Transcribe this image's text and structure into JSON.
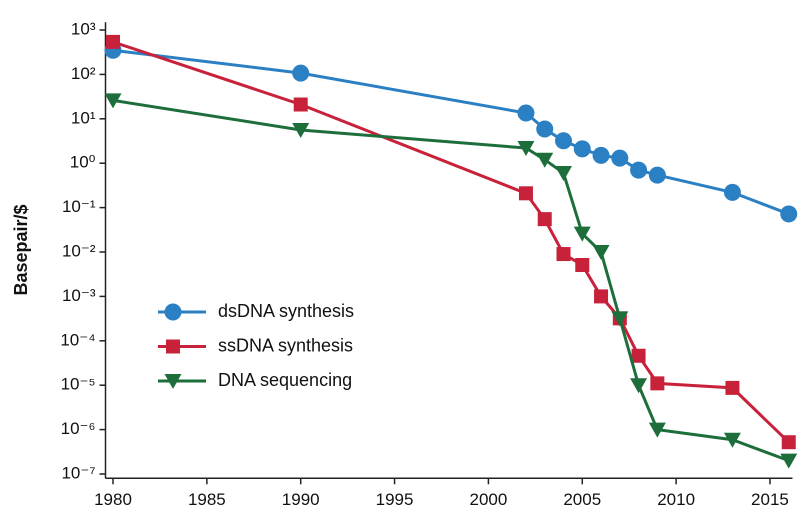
{
  "chart_data": {
    "type": "line",
    "y_label": "Basepair/$",
    "log_y": true,
    "xlim": [
      1979.6,
      2016.2
    ],
    "ylim": [
      8e-08,
      1500
    ],
    "xticks": [
      1980,
      1985,
      1990,
      1995,
      2000,
      2005,
      2010,
      2015
    ],
    "yticks": [
      {
        "value": 1e-07,
        "label": "10⁻⁷"
      },
      {
        "value": 1e-06,
        "label": "10⁻⁶"
      },
      {
        "value": 1e-05,
        "label": "10⁻⁵"
      },
      {
        "value": 0.0001,
        "label": "10⁻⁴"
      },
      {
        "value": 0.001,
        "label": "10⁻³"
      },
      {
        "value": 0.01,
        "label": "10⁻²"
      },
      {
        "value": 0.1,
        "label": "10⁻¹"
      },
      {
        "value": 1,
        "label": "10⁰"
      },
      {
        "value": 10,
        "label": "10¹"
      },
      {
        "value": 100,
        "label": "10²"
      },
      {
        "value": 1000,
        "label": "10³"
      }
    ],
    "series": [
      {
        "name": "dsDNA synthesis",
        "color": "#2b7fc3",
        "marker": "circle",
        "x": [
          1980,
          1990,
          2002,
          2003,
          2004,
          2005,
          2006,
          2007,
          2008,
          2009,
          2013,
          2016
        ],
        "values": [
          350,
          107,
          13.5,
          5.9,
          3.2,
          2.1,
          1.5,
          1.3,
          0.7,
          0.54,
          0.22,
          0.072
        ]
      },
      {
        "name": "ssDNA synthesis",
        "color": "#c8213a",
        "marker": "square",
        "x": [
          1980,
          1990,
          2002,
          2003,
          2004,
          2005,
          2006,
          2007,
          2008,
          2009,
          2013,
          2016
        ],
        "values": [
          540,
          21,
          0.21,
          0.055,
          0.009,
          0.0051,
          0.001,
          0.00032,
          4.6e-05,
          1.1e-05,
          8.7e-06,
          5.2e-07
        ]
      },
      {
        "name": "DNA sequencing",
        "color": "#1e6e3c",
        "marker": "triangle-down",
        "x": [
          1980,
          1990,
          2002,
          2003,
          2004,
          2005,
          2006,
          2007,
          2008,
          2009,
          2013,
          2016
        ],
        "values": [
          26,
          5.6,
          2.2,
          1.2,
          0.6,
          0.026,
          0.01,
          0.00032,
          1e-05,
          1e-06,
          5.9e-07,
          2e-07
        ]
      }
    ]
  }
}
